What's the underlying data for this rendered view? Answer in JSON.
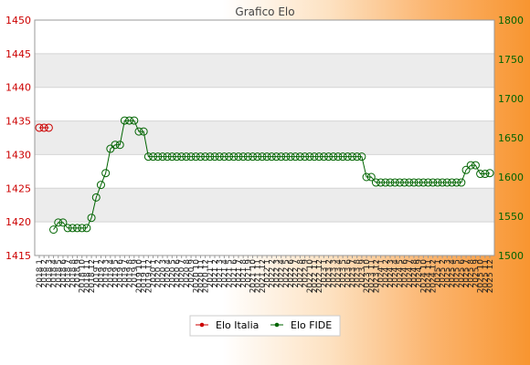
{
  "chart_data": {
    "type": "line",
    "title": "Grafico Elo",
    "legend_position": "bottom",
    "grid": true,
    "x": [
      "2018 1",
      "2018 2",
      "2018 3",
      "2018 4",
      "2018 5",
      "2018 6",
      "2018 7",
      "2018 8",
      "2018 9",
      "2018 10",
      "2018 11",
      "2018 12",
      "2019 1",
      "2019 2",
      "2019 3",
      "2019 4",
      "2019 5",
      "2019 6",
      "2019 7",
      "2019 8",
      "2019 9",
      "2019 10",
      "2019 11",
      "2019 12",
      "2020 1",
      "2020 2",
      "2020 3",
      "2020 4",
      "2020 5",
      "2020 6",
      "2020 7",
      "2020 8",
      "2020 9",
      "2020 10",
      "2020 11",
      "2020 12",
      "2021 1",
      "2021 2",
      "2021 3",
      "2021 4",
      "2021 5",
      "2021 6",
      "2021 7",
      "2021 8",
      "2021 9",
      "2021 10",
      "2021 11",
      "2021 12",
      "2022 1",
      "2022 2",
      "2022 3",
      "2022 4",
      "2022 5",
      "2022 6",
      "2022 7",
      "2022 8",
      "2022 9",
      "2022 10",
      "2022 11",
      "2022 12",
      "2023 1",
      "2023 2",
      "2023 3",
      "2023 4",
      "2023 5",
      "2023 6",
      "2023 7",
      "2023 8",
      "2023 9",
      "2023 10",
      "2023 11",
      "2023 12",
      "2024 1",
      "2024 2",
      "2024 3",
      "2024 4",
      "2024 5",
      "2024 6",
      "2024 7",
      "2024 8",
      "2024 9",
      "2024 10",
      "2024 11",
      "2024 12",
      "2025 1",
      "2025 2",
      "2025 3",
      "2025 4",
      "2025 5",
      "2025 6",
      "2025 7",
      "2025 8",
      "2025 9",
      "2025 10",
      "2025 11",
      "2025 12"
    ],
    "y_left": {
      "ticks": [
        1415,
        1420,
        1425,
        1430,
        1435,
        1440,
        1445,
        1450
      ],
      "range": [
        1415,
        1450
      ],
      "color": "#cc0000"
    },
    "y_right": {
      "ticks": [
        1500,
        1550,
        1600,
        1650,
        1700,
        1750,
        1800
      ],
      "range": [
        1500,
        1800
      ],
      "color": "#006400"
    },
    "series": [
      {
        "name": "Elo Italia",
        "axis": "left",
        "color": "#cc0000",
        "points": [
          [
            0,
            1434
          ],
          [
            1,
            1434
          ],
          [
            2,
            1434
          ]
        ]
      },
      {
        "name": "Elo FIDE",
        "axis": "right",
        "color": "#006400",
        "points": [
          [
            3,
            1533
          ],
          [
            4,
            1542
          ],
          [
            5,
            1542
          ],
          [
            6,
            1535
          ],
          [
            7,
            1535
          ],
          [
            8,
            1535
          ],
          [
            9,
            1535
          ],
          [
            10,
            1535
          ],
          [
            11,
            1548
          ],
          [
            12,
            1574
          ],
          [
            13,
            1590
          ],
          [
            14,
            1605
          ],
          [
            15,
            1636
          ],
          [
            16,
            1641
          ],
          [
            17,
            1641
          ],
          [
            18,
            1672
          ],
          [
            19,
            1672
          ],
          [
            20,
            1672
          ],
          [
            21,
            1658
          ],
          [
            22,
            1658
          ],
          [
            23,
            1626
          ],
          [
            24,
            1626
          ],
          [
            25,
            1626
          ],
          [
            26,
            1626
          ],
          [
            27,
            1626
          ],
          [
            28,
            1626
          ],
          [
            29,
            1626
          ],
          [
            30,
            1626
          ],
          [
            31,
            1626
          ],
          [
            32,
            1626
          ],
          [
            33,
            1626
          ],
          [
            34,
            1626
          ],
          [
            35,
            1626
          ],
          [
            36,
            1626
          ],
          [
            37,
            1626
          ],
          [
            38,
            1626
          ],
          [
            39,
            1626
          ],
          [
            40,
            1626
          ],
          [
            41,
            1626
          ],
          [
            42,
            1626
          ],
          [
            43,
            1626
          ],
          [
            44,
            1626
          ],
          [
            45,
            1626
          ],
          [
            46,
            1626
          ],
          [
            47,
            1626
          ],
          [
            48,
            1626
          ],
          [
            49,
            1626
          ],
          [
            50,
            1626
          ],
          [
            51,
            1626
          ],
          [
            52,
            1626
          ],
          [
            53,
            1626
          ],
          [
            54,
            1626
          ],
          [
            55,
            1626
          ],
          [
            56,
            1626
          ],
          [
            57,
            1626
          ],
          [
            58,
            1626
          ],
          [
            59,
            1626
          ],
          [
            60,
            1626
          ],
          [
            61,
            1626
          ],
          [
            62,
            1626
          ],
          [
            63,
            1626
          ],
          [
            64,
            1626
          ],
          [
            65,
            1626
          ],
          [
            66,
            1626
          ],
          [
            67,
            1626
          ],
          [
            68,
            1626
          ],
          [
            69,
            1600
          ],
          [
            70,
            1600
          ],
          [
            71,
            1593
          ],
          [
            72,
            1593
          ],
          [
            73,
            1593
          ],
          [
            74,
            1593
          ],
          [
            75,
            1593
          ],
          [
            76,
            1593
          ],
          [
            77,
            1593
          ],
          [
            78,
            1593
          ],
          [
            79,
            1593
          ],
          [
            80,
            1593
          ],
          [
            81,
            1593
          ],
          [
            82,
            1593
          ],
          [
            83,
            1593
          ],
          [
            84,
            1593
          ],
          [
            85,
            1593
          ],
          [
            86,
            1593
          ],
          [
            87,
            1593
          ],
          [
            88,
            1593
          ],
          [
            89,
            1593
          ],
          [
            90,
            1609
          ],
          [
            91,
            1615
          ],
          [
            92,
            1615
          ],
          [
            93,
            1604
          ],
          [
            94,
            1604
          ],
          [
            95,
            1605
          ]
        ]
      }
    ]
  }
}
